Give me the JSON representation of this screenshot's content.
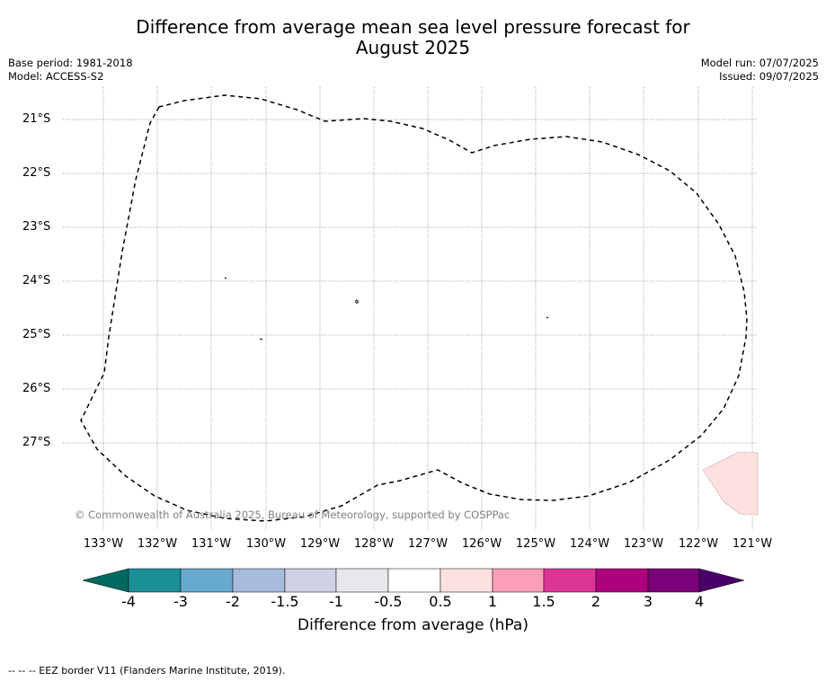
{
  "title_line1": "Difference from average mean sea level pressure forecast for",
  "title_line2": "August 2025",
  "meta_left": {
    "base_period": "Base period: 1981-2018",
    "model": "Model: ACCESS-S2"
  },
  "meta_right": {
    "model_run": "Model run: 07/07/2025",
    "issued": "Issued: 09/07/2025"
  },
  "map": {
    "lat_labels": [
      "21°S",
      "22°S",
      "23°S",
      "24°S",
      "25°S",
      "26°S",
      "27°S"
    ],
    "lon_labels": [
      "133°W",
      "132°W",
      "131°W",
      "130°W",
      "129°W",
      "128°W",
      "127°W",
      "126°W",
      "125°W",
      "124°W",
      "123°W",
      "122°W",
      "121°W"
    ],
    "copyright": "© Commonwealth of Australia 2025, Bureau of Meteorology, supported by COSPPac",
    "anomaly_region_color": "#fde0e0",
    "anomaly_region_label": "0.5 to 1 hPa"
  },
  "colorbar": {
    "label": "Difference from average (hPa)",
    "ticks": [
      "-4",
      "-3",
      "-2",
      "-1.5",
      "-1",
      "-0.5",
      "0.5",
      "1",
      "1.5",
      "2",
      "3",
      "4"
    ],
    "colors": [
      "#006a60",
      "#1a8f96",
      "#66aacf",
      "#a7bbdc",
      "#d0d0e6",
      "#e8e8ec",
      "#ffffff",
      "#fde0e0",
      "#fb9fb8",
      "#dd3497",
      "#ae017e",
      "#7a0177",
      "#49006a"
    ]
  },
  "footnote": "--  --  -- EEZ border V11 (Flanders Marine Institute, 2019)."
}
